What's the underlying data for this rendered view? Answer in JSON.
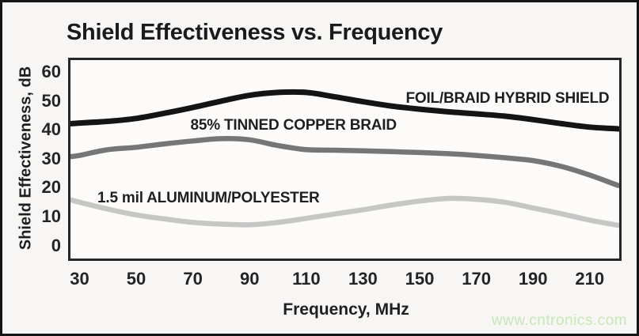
{
  "page": {
    "watermark": "www.cntronics.com"
  },
  "chart_data": {
    "type": "line",
    "title": "Shield Effectiveness vs. Frequency",
    "xlabel": "Frequency, MHz",
    "ylabel": "Shield Effectiveness, dB",
    "x_ticks": [
      30,
      50,
      70,
      90,
      110,
      130,
      150,
      170,
      190,
      210
    ],
    "y_ticks": [
      60,
      50,
      40,
      30,
      20,
      10,
      0
    ],
    "xlim": [
      26.8,
      220.4
    ],
    "ylim": [
      0,
      60
    ],
    "grid": false,
    "legend_position": "inline-labels",
    "x": [
      27,
      30,
      40,
      50,
      60,
      70,
      80,
      90,
      100,
      110,
      120,
      130,
      140,
      150,
      160,
      170,
      180,
      190,
      200,
      210,
      220
    ],
    "series": [
      {
        "name": "FOIL/BRAID HYBRID SHIELD",
        "color": "#141414",
        "line_width": 7,
        "label_anchor": {
          "x": 181,
          "y": 50.8
        },
        "values": [
          42.2,
          42.4,
          43.0,
          44.0,
          45.8,
          47.8,
          50.0,
          52.0,
          53.0,
          53.0,
          51.5,
          49.8,
          48.3,
          47.2,
          46.3,
          45.6,
          44.8,
          43.6,
          42.2,
          41.0,
          40.4
        ]
      },
      {
        "name": "85% TINNED COPPER BRAID",
        "color": "#767676",
        "line_width": 6.5,
        "label_anchor": {
          "x": 105.5,
          "y": 41.5
        },
        "values": [
          30.8,
          31.2,
          33.2,
          34.0,
          35.2,
          36.2,
          37.0,
          36.6,
          34.6,
          33.2,
          33.0,
          32.8,
          32.5,
          32.2,
          31.8,
          31.2,
          30.4,
          29.4,
          27.4,
          24.4,
          20.8
        ]
      },
      {
        "name": "1.5 mil ALUMINUM/POLYESTER",
        "color": "#c6c6c5",
        "line_width": 6.5,
        "label_anchor": {
          "x": 75.5,
          "y": 16.2
        },
        "values": [
          15.8,
          15.0,
          12.6,
          10.6,
          9.2,
          8.0,
          7.4,
          7.2,
          8.0,
          9.4,
          10.9,
          12.4,
          14.0,
          15.4,
          16.3,
          16.0,
          15.0,
          13.0,
          11.0,
          8.8,
          7.0
        ]
      }
    ]
  }
}
